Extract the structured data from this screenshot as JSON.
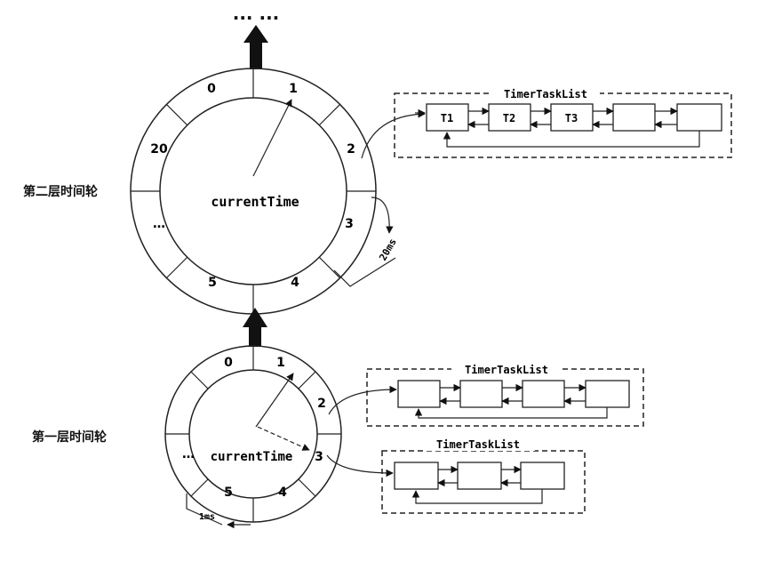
{
  "top_ellipsis": "... ...",
  "level2": {
    "title": "第二层时间轮",
    "center_label": "currentTime",
    "slots": [
      "0",
      "1",
      "2",
      "3",
      "4",
      "5",
      "…",
      "20"
    ],
    "tick_label": "20ms",
    "list_title": "TimerTaskList",
    "tasks": [
      "T1",
      "T2",
      "T3",
      "",
      ""
    ]
  },
  "level1": {
    "title": "第一层时间轮",
    "center_label": "currentTime",
    "slots": [
      "0",
      "1",
      "2",
      "3",
      "4",
      "5",
      "…"
    ],
    "tick_label": "1ms",
    "lists": [
      {
        "title": "TimerTaskList",
        "tasks": [
          "",
          "",
          "",
          ""
        ]
      },
      {
        "title": "TimerTaskList",
        "tasks": [
          "",
          "",
          ""
        ]
      }
    ]
  },
  "colors": {
    "line": "#222222",
    "arrow": "#111111",
    "box_fill": "#ffffff"
  }
}
